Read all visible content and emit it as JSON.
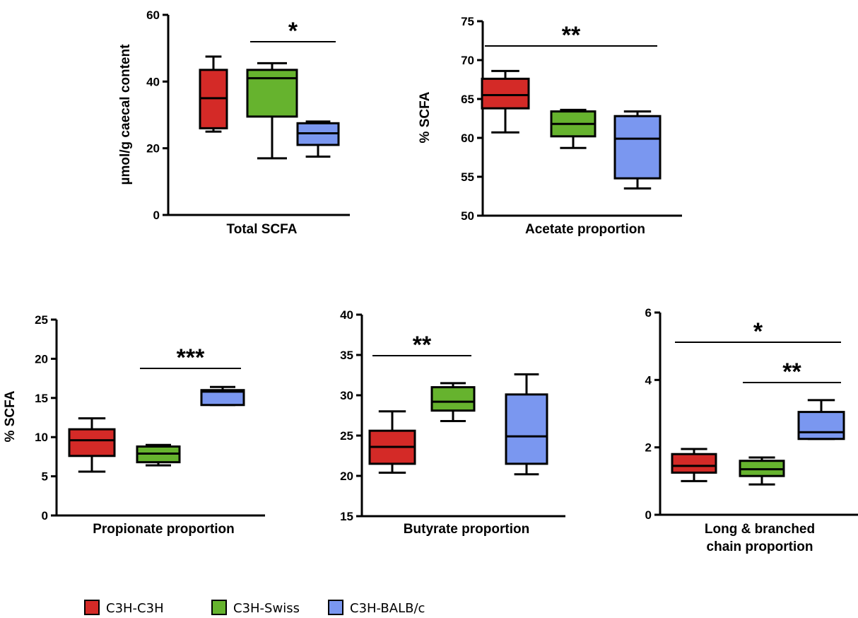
{
  "legend": [
    {
      "name": "C3H-C3H",
      "color": "#d42a27"
    },
    {
      "name": "C3H-Swiss",
      "color": "#66b32e"
    },
    {
      "name": "C3H-BALB/c",
      "color": "#7a97f0"
    }
  ],
  "chart_data": [
    {
      "type": "boxplot",
      "xlabel": "Total SCFA",
      "ylabel": "µmol/g caecal content",
      "ylim": [
        0,
        60
      ],
      "yticks": [
        0,
        20,
        40,
        60
      ],
      "groups": [
        "C3H-C3H",
        "C3H-Swiss",
        "C3H-BALB/c"
      ],
      "boxes": [
        {
          "min": 25,
          "q1": 26,
          "median": 35,
          "q3": 43.5,
          "max": 47.5
        },
        {
          "min": 17,
          "q1": 29.5,
          "median": 41,
          "q3": 43.5,
          "max": 45.5
        },
        {
          "min": 17.5,
          "q1": 21,
          "median": 24.5,
          "q3": 27.5,
          "max": 28
        }
      ],
      "significance": [
        {
          "from": 1,
          "to": 2,
          "label": "*"
        }
      ]
    },
    {
      "type": "boxplot",
      "xlabel": "Acetate proportion",
      "ylabel": "% SCFA",
      "ylim": [
        50,
        75
      ],
      "yticks": [
        50,
        55,
        60,
        65,
        70,
        75
      ],
      "groups": [
        "C3H-C3H",
        "C3H-Swiss",
        "C3H-BALB/c"
      ],
      "boxes": [
        {
          "min": 60.7,
          "q1": 63.8,
          "median": 65.5,
          "q3": 67.6,
          "max": 68.6
        },
        {
          "min": 58.7,
          "q1": 60.2,
          "median": 61.8,
          "q3": 63.4,
          "max": 63.6
        },
        {
          "min": 53.5,
          "q1": 54.8,
          "median": 59.9,
          "q3": 62.8,
          "max": 63.4
        }
      ],
      "significance": [
        {
          "from": 0,
          "to": 2,
          "label": "**"
        }
      ]
    },
    {
      "type": "boxplot",
      "xlabel": "Propionate proportion",
      "ylabel": "% SCFA",
      "ylim": [
        0,
        25
      ],
      "yticks": [
        0,
        5,
        10,
        15,
        20,
        25
      ],
      "groups": [
        "C3H-C3H",
        "C3H-Swiss",
        "C3H-BALB/c"
      ],
      "boxes": [
        {
          "min": 5.6,
          "q1": 7.6,
          "median": 9.6,
          "q3": 11.0,
          "max": 12.4
        },
        {
          "min": 6.4,
          "q1": 6.8,
          "median": 7.9,
          "q3": 8.8,
          "max": 9.0
        },
        {
          "min": 14.1,
          "q1": 14.1,
          "median": 15.8,
          "q3": 16.0,
          "max": 16.4
        }
      ],
      "significance": [
        {
          "from": 1,
          "to": 2,
          "label": "***"
        }
      ]
    },
    {
      "type": "boxplot",
      "xlabel": "Butyrate proportion",
      "ylabel": "",
      "ylim": [
        15,
        40
      ],
      "yticks": [
        15,
        20,
        25,
        30,
        35,
        40
      ],
      "groups": [
        "C3H-C3H",
        "C3H-Swiss",
        "C3H-BALB/c"
      ],
      "boxes": [
        {
          "min": 20.4,
          "q1": 21.5,
          "median": 23.6,
          "q3": 25.6,
          "max": 28.0
        },
        {
          "min": 26.8,
          "q1": 28.1,
          "median": 29.2,
          "q3": 31.0,
          "max": 31.5
        },
        {
          "min": 20.2,
          "q1": 21.5,
          "median": 24.9,
          "q3": 30.1,
          "max": 32.6
        }
      ],
      "significance": [
        {
          "from": 0,
          "to": 1,
          "label": "**"
        }
      ]
    },
    {
      "type": "boxplot",
      "xlabel": "Long & branched chain proportion",
      "ylabel": "",
      "ylim": [
        0,
        6
      ],
      "yticks": [
        0,
        2,
        4,
        6
      ],
      "groups": [
        "C3H-C3H",
        "C3H-Swiss",
        "C3H-BALB/c"
      ],
      "boxes": [
        {
          "min": 1.0,
          "q1": 1.25,
          "median": 1.45,
          "q3": 1.8,
          "max": 1.95
        },
        {
          "min": 0.9,
          "q1": 1.15,
          "median": 1.35,
          "q3": 1.6,
          "max": 1.7
        },
        {
          "min": 2.25,
          "q1": 2.25,
          "median": 2.45,
          "q3": 3.05,
          "max": 3.4
        }
      ],
      "significance": [
        {
          "from": 0,
          "to": 2,
          "label": "*"
        },
        {
          "from": 1,
          "to": 2,
          "label": "**"
        }
      ]
    }
  ]
}
